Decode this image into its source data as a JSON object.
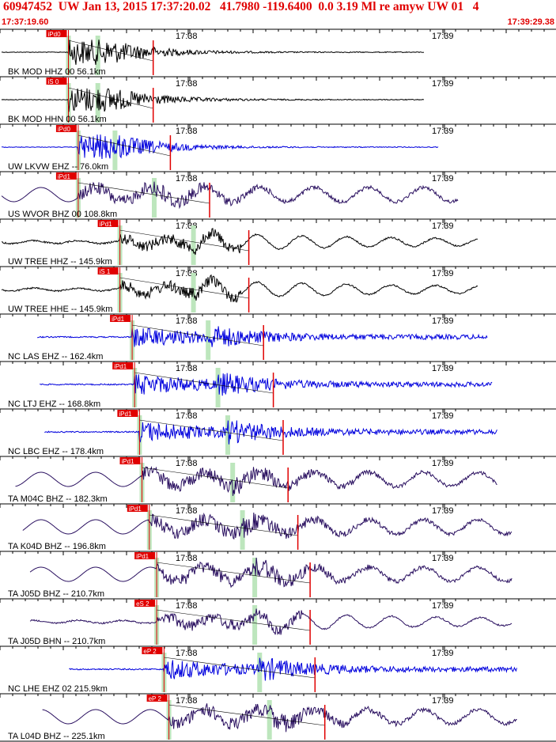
{
  "header": {
    "title": "60947452  UW Jan 13, 2015 17:37:20.02   41.7980 -119.6400  0.0 3.19 Ml re amyw UW 01   4",
    "start_time": "17:37:19.60",
    "end_time": "17:39:29.38"
  },
  "time_marks": [
    "17:38",
    "17:39"
  ],
  "colors": {
    "black": "#000000",
    "blue": "#0000dd",
    "purple": "#2a1060",
    "pick": "#e00000",
    "window": "#bde6bd"
  },
  "traces": [
    {
      "label": "BK MOD HHZ 00 56.1km",
      "pick": "iPd0",
      "color": "black",
      "wave": "burst",
      "p": 0.075,
      "s": 0.135,
      "end": 0.8
    },
    {
      "label": "BK MOD HHN 00 56.1km",
      "pick": "iS 0",
      "color": "black",
      "wave": "burst2",
      "p": 0.075,
      "s": 0.135,
      "end": 0.8
    },
    {
      "label": "UW LKVW EHZ -- 76.0km",
      "pick": "iPd0",
      "color": "blue",
      "wave": "burst",
      "p": 0.095,
      "s": 0.17,
      "end": 0.83
    },
    {
      "label": "US WVOR BHZ 00 108.8km",
      "pick": "iPd1",
      "color": "purple",
      "wave": "mixed",
      "p": 0.095,
      "s": 0.25,
      "end": 0.87
    },
    {
      "label": "UW TREE HHZ -- 145.9km",
      "pick": "iPd1",
      "color": "black",
      "wave": "low",
      "p": 0.18,
      "s": 0.33,
      "end": 0.91
    },
    {
      "label": "UW TREE HHE -- 145.9km",
      "pick": "iS 1",
      "color": "black",
      "wave": "lowS",
      "p": 0.18,
      "s": 0.33,
      "end": 0.91
    },
    {
      "label": "NC LAS EHZ -- 162.4km",
      "pick": "iPd1",
      "color": "blue",
      "wave": "hf",
      "p": 0.205,
      "s": 0.36,
      "end": 0.93
    },
    {
      "label": "NC LTJ EHZ -- 168.8km",
      "pick": "iPd1",
      "color": "blue",
      "wave": "hf",
      "p": 0.21,
      "s": 0.38,
      "end": 0.94
    },
    {
      "label": "NC LBC EHZ -- 178.4km",
      "pick": "iPd1",
      "color": "blue",
      "wave": "hf",
      "p": 0.22,
      "s": 0.4,
      "end": 0.95
    },
    {
      "label": "TA M04C BHZ -- 182.3km",
      "pick": "iPd1",
      "color": "purple",
      "wave": "mixed",
      "p": 0.225,
      "s": 0.41,
      "end": 0.95
    },
    {
      "label": "TA K04D BHZ -- 196.8km",
      "pick": "iPd1",
      "color": "purple",
      "wave": "mixed",
      "p": 0.24,
      "s": 0.43,
      "end": 0.98
    },
    {
      "label": "TA J05D BHZ -- 210.7km",
      "pick": "iPd1",
      "color": "purple",
      "wave": "mixed",
      "p": 0.255,
      "s": 0.455,
      "end": 0.98
    },
    {
      "label": "TA J05D BHN -- 210.7km",
      "pick": "eS 2",
      "color": "purple",
      "wave": "lowS",
      "p": 0.255,
      "s": 0.455,
      "end": 0.98
    },
    {
      "label": "NC LHE EHZ 02 215.9km",
      "pick": "eP 2",
      "color": "blue",
      "wave": "hf",
      "p": 0.27,
      "s": 0.465,
      "end": 0.99
    },
    {
      "label": "TA L04D BHZ -- 225.1km",
      "pick": "eP 2",
      "color": "purple",
      "wave": "mixed",
      "p": 0.28,
      "s": 0.485,
      "end": 0.99
    }
  ]
}
